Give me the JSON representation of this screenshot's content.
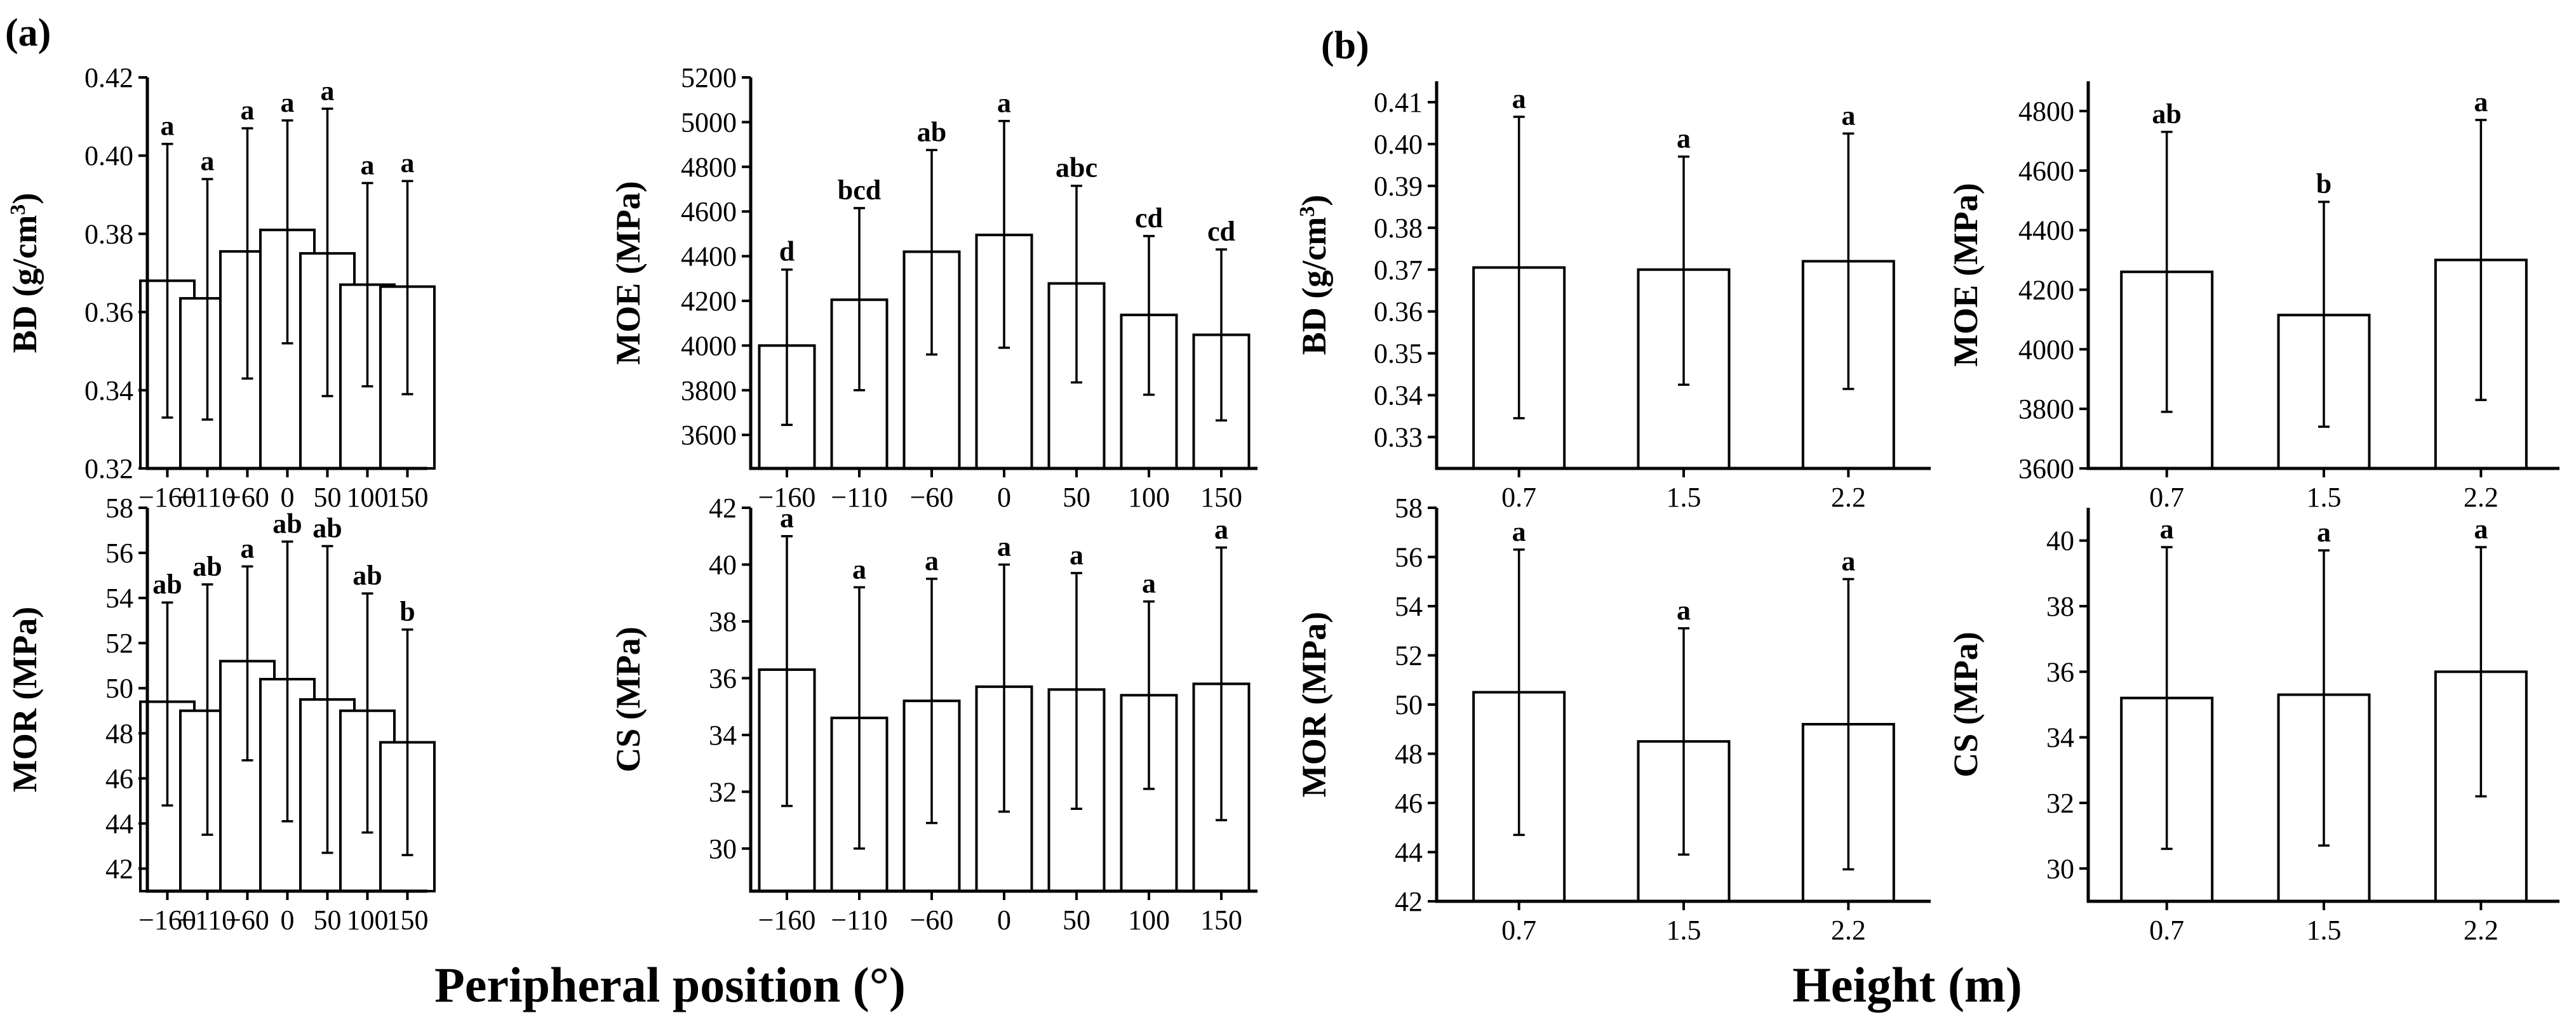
{
  "panel_labels": {
    "a": "(a)",
    "b": "(b)"
  },
  "x_titles": {
    "a": "Peripheral position (°)",
    "b": "Height (m)"
  },
  "chart_data": [
    {
      "type": "bar",
      "panel": "(a)",
      "categories": [
        "−160",
        "−110",
        "−60",
        "0",
        "50",
        "100",
        "150"
      ],
      "values": [
        0.368,
        0.3635,
        0.3755,
        0.381,
        0.375,
        0.367,
        0.3665
      ],
      "error_upper": [
        0.403,
        0.394,
        0.407,
        0.409,
        0.412,
        0.393,
        0.3935
      ],
      "error_lower": [
        0.333,
        0.3325,
        0.343,
        0.352,
        0.3385,
        0.341,
        0.339
      ],
      "significance": [
        "a",
        "a",
        "a",
        "a",
        "a",
        "a",
        "a"
      ],
      "ylabel": "BD (g/cm³)",
      "ylim": [
        0.32,
        0.42
      ],
      "yticks": [
        0.32,
        0.34,
        0.36,
        0.38,
        0.4,
        0.42
      ],
      "ydecimals": 2
    },
    {
      "type": "bar",
      "panel": "(a)",
      "categories": [
        "−160",
        "−110",
        "−60",
        "0",
        "50",
        "100",
        "150"
      ],
      "values": [
        4000,
        4205,
        4420,
        4495,
        4278,
        4137,
        4048
      ],
      "error_upper": [
        4340,
        4615,
        4875,
        5005,
        4715,
        4490,
        4430
      ],
      "error_lower": [
        3645,
        3800,
        3960,
        3990,
        3835,
        3780,
        3665
      ],
      "significance": [
        "d",
        "bcd",
        "ab",
        "a",
        "abc",
        "cd",
        "cd"
      ],
      "ylabel": "MOE (MPa)",
      "ylim": [
        3450,
        5200
      ],
      "yticks": [
        3600,
        3800,
        4000,
        4200,
        4400,
        4600,
        4800,
        5000,
        5200
      ],
      "ydecimals": 0
    },
    {
      "type": "bar",
      "panel": "(a)",
      "categories": [
        "−160",
        "−110",
        "−60",
        "0",
        "50",
        "100",
        "150"
      ],
      "values": [
        49.4,
        49.0,
        51.2,
        50.4,
        49.5,
        49.0,
        47.6
      ],
      "error_upper": [
        53.8,
        54.6,
        55.4,
        56.5,
        56.3,
        54.2,
        52.6
      ],
      "error_lower": [
        44.8,
        43.5,
        46.8,
        44.1,
        42.7,
        43.6,
        42.6
      ],
      "significance": [
        "ab",
        "ab",
        "a",
        "ab",
        "ab",
        "ab",
        "b"
      ],
      "ylabel": "MOR (MPa)",
      "ylim": [
        41,
        58
      ],
      "yticks": [
        42,
        44,
        46,
        48,
        50,
        52,
        54,
        56,
        58
      ],
      "ydecimals": 0
    },
    {
      "type": "bar",
      "panel": "(a)",
      "categories": [
        "−160",
        "−110",
        "−60",
        "0",
        "50",
        "100",
        "150"
      ],
      "values": [
        36.3,
        34.6,
        35.2,
        35.7,
        35.6,
        35.4,
        35.8
      ],
      "error_upper": [
        41.0,
        39.2,
        39.5,
        40.0,
        39.7,
        38.7,
        40.6
      ],
      "error_lower": [
        31.5,
        30.0,
        30.9,
        31.3,
        31.4,
        32.1,
        31.0
      ],
      "significance": [
        "a",
        "a",
        "a",
        "a",
        "a",
        "a",
        "a"
      ],
      "ylabel": "CS (MPa)",
      "ylim": [
        28.5,
        42
      ],
      "yticks": [
        30,
        32,
        34,
        36,
        38,
        40,
        42
      ],
      "ydecimals": 0
    },
    {
      "type": "bar",
      "panel": "(b)",
      "categories": [
        "0.7",
        "1.5",
        "2.2"
      ],
      "values": [
        0.3705,
        0.37,
        0.372
      ],
      "error_upper": [
        0.4065,
        0.397,
        0.4025
      ],
      "error_lower": [
        0.3345,
        0.3425,
        0.3415
      ],
      "significance": [
        "a",
        "a",
        "a"
      ],
      "ylabel": "BD (g/cm³)",
      "ylim": [
        0.3225,
        0.415
      ],
      "yticks": [
        0.33,
        0.34,
        0.35,
        0.36,
        0.37,
        0.38,
        0.39,
        0.4,
        0.41
      ],
      "ydecimals": 2
    },
    {
      "type": "bar",
      "panel": "(b)",
      "categories": [
        "0.7",
        "1.5",
        "2.2"
      ],
      "values": [
        4260,
        4115,
        4300
      ],
      "error_upper": [
        4730,
        4495,
        4770
      ],
      "error_lower": [
        3790,
        3740,
        3830
      ],
      "significance": [
        "ab",
        "b",
        "a"
      ],
      "ylabel": "MOE (MPa)",
      "ylim": [
        3600,
        4900
      ],
      "yticks": [
        3600,
        3800,
        4000,
        4200,
        4400,
        4600,
        4800
      ],
      "ydecimals": 0
    },
    {
      "type": "bar",
      "panel": "(b)",
      "categories": [
        "0.7",
        "1.5",
        "2.2"
      ],
      "values": [
        50.5,
        48.5,
        49.2
      ],
      "error_upper": [
        56.3,
        53.1,
        55.1
      ],
      "error_lower": [
        44.7,
        43.9,
        43.3
      ],
      "significance": [
        "a",
        "a",
        "a"
      ],
      "ylabel": "MOR (MPa)",
      "ylim": [
        42,
        58
      ],
      "yticks": [
        42,
        44,
        46,
        48,
        50,
        52,
        54,
        56,
        58
      ],
      "ydecimals": 0
    },
    {
      "type": "bar",
      "panel": "(b)",
      "categories": [
        "0.7",
        "1.5",
        "2.2"
      ],
      "values": [
        35.2,
        35.3,
        36.0
      ],
      "error_upper": [
        39.8,
        39.7,
        39.8
      ],
      "error_lower": [
        30.6,
        30.7,
        32.2
      ],
      "significance": [
        "a",
        "a",
        "a"
      ],
      "ylabel": "CS (MPa)",
      "ylim": [
        29,
        41
      ],
      "yticks": [
        30,
        32,
        34,
        36,
        38,
        40
      ],
      "ydecimals": 0
    }
  ]
}
